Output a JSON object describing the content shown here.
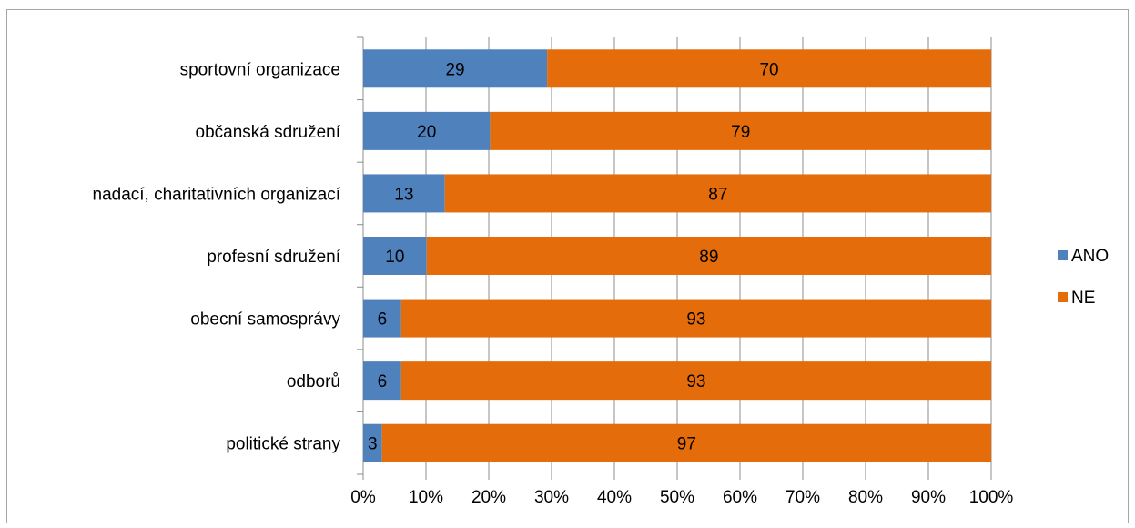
{
  "chart_data": {
    "type": "bar",
    "orientation": "horizontal",
    "stacked": "percent",
    "categories": [
      "sportovní organizace",
      "občanská sdružení",
      "nadací, charitativních organizací",
      "profesní sdružení",
      "obecní samosprávy",
      "odborů",
      "politické strany"
    ],
    "series": [
      {
        "name": "ANO",
        "color": "#4f81bd",
        "values": [
          29,
          20,
          13,
          10,
          6,
          6,
          3
        ]
      },
      {
        "name": "NE",
        "color": "#e46c0a",
        "values": [
          70,
          79,
          87,
          89,
          93,
          93,
          97
        ]
      }
    ],
    "xlim": [
      0,
      100
    ],
    "x_ticks": [
      "0%",
      "10%",
      "20%",
      "30%",
      "40%",
      "50%",
      "60%",
      "70%",
      "80%",
      "90%",
      "100%"
    ],
    "grid": true,
    "legend_position": "right"
  }
}
